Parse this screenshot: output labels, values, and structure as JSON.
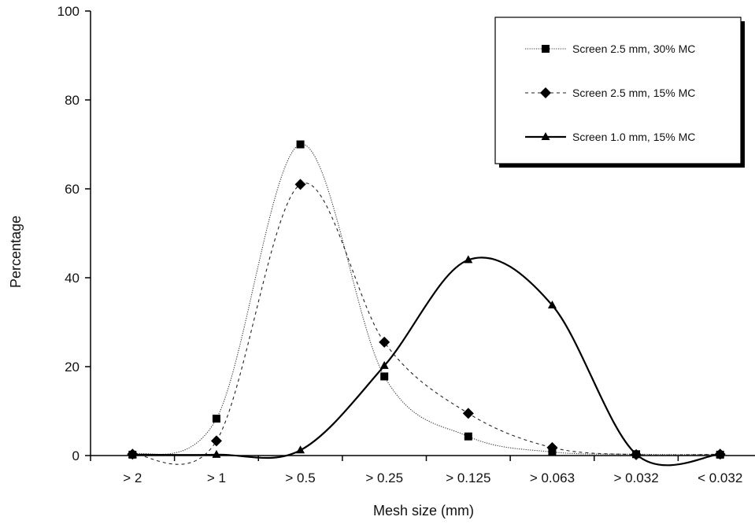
{
  "chart_data": {
    "type": "line",
    "title": "",
    "xlabel": "Mesh size (mm)",
    "ylabel": "Percentage",
    "categories": [
      "> 2",
      "> 1",
      "> 0.5",
      "> 0.25",
      "> 0.125",
      "> 0.063",
      "> 0.032",
      "< 0.032"
    ],
    "ylim": [
      0,
      100
    ],
    "yticks": [
      "0",
      "20",
      "40",
      "60",
      "80",
      "100"
    ],
    "grid": false,
    "legend_position": "top-right",
    "series": [
      {
        "name": "Screen 2.5 mm, 30% MC",
        "marker": "square",
        "line": "dotted",
        "values": [
          0.2,
          8.3,
          70,
          17.8,
          4.3,
          0.8,
          0.3,
          0.2
        ]
      },
      {
        "name": "Screen 2.5 mm, 15% MC",
        "marker": "diamond",
        "line": "dashed",
        "values": [
          0.3,
          3.3,
          61,
          25.5,
          9.5,
          1.8,
          0.2,
          0.3
        ]
      },
      {
        "name": "Screen 1.0 mm, 15% MC",
        "marker": "triangle",
        "line": "solid",
        "values": [
          0.2,
          0.2,
          1.2,
          20.2,
          44,
          33.8,
          0.3,
          0.3
        ]
      }
    ]
  }
}
